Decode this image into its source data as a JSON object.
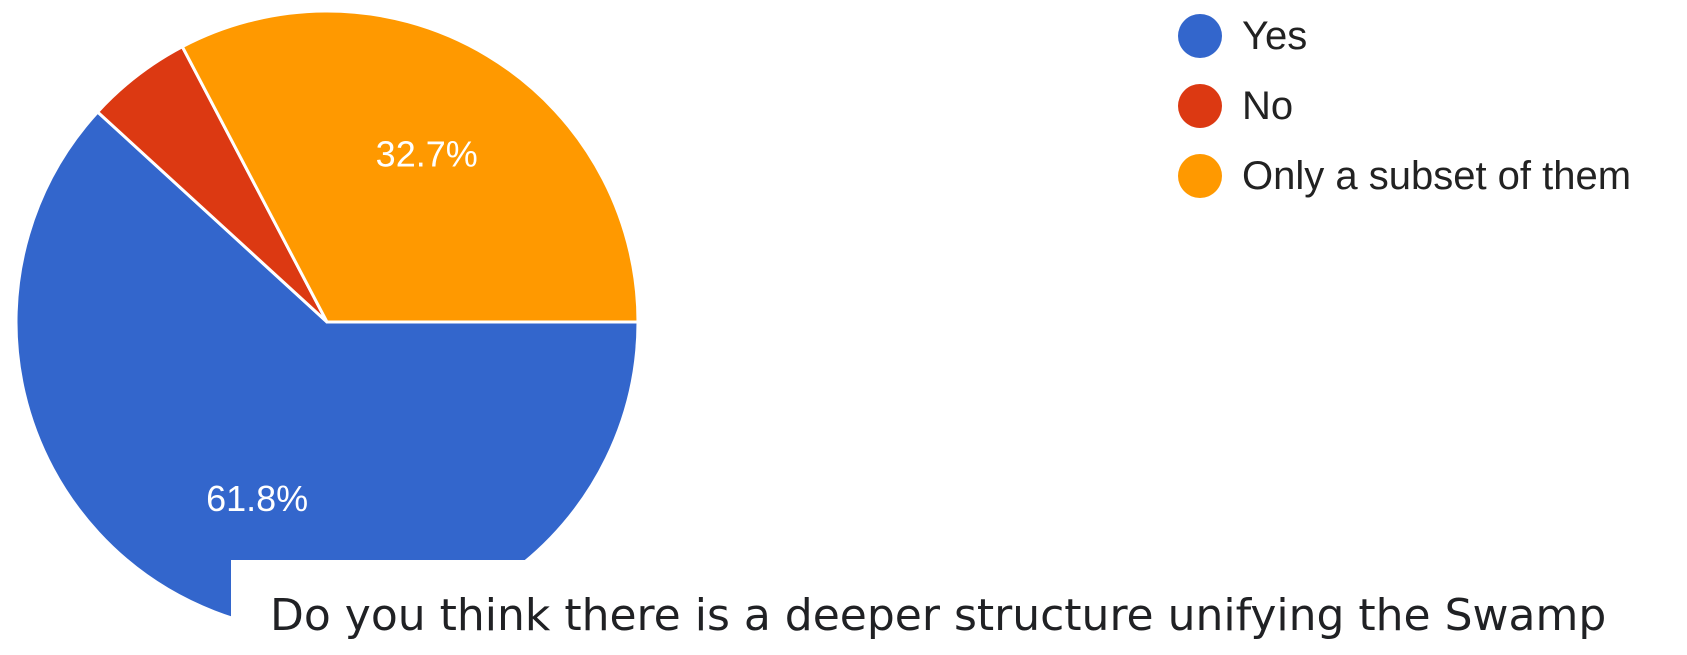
{
  "chart_data": {
    "type": "pie",
    "categories": [
      "Yes",
      "No",
      "Only a subset of them"
    ],
    "values": [
      61.8,
      5.5,
      32.7
    ],
    "data_labels": [
      "61.8%",
      "",
      "32.7%"
    ],
    "colors": [
      "#3366cc",
      "#dc3912",
      "#ff9900"
    ],
    "legend_position": "top-right",
    "title": ""
  },
  "question": {
    "text": "Do you think there is a deeper structure unifying the Swamp"
  }
}
